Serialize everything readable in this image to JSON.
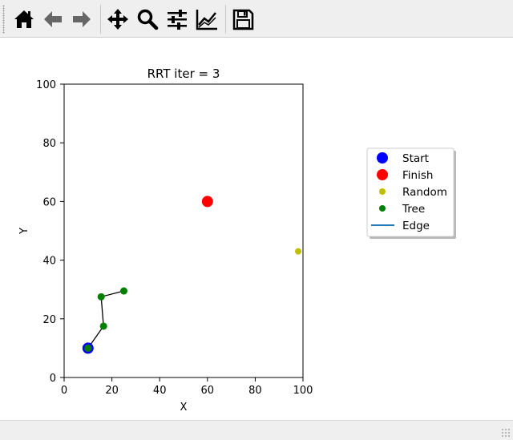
{
  "toolbar": {
    "buttons": [
      {
        "name": "home-button",
        "icon": "home-icon"
      },
      {
        "name": "back-button",
        "icon": "arrow-left-icon"
      },
      {
        "name": "forward-button",
        "icon": "arrow-right-icon"
      },
      {
        "name": "pan-button",
        "icon": "move-icon"
      },
      {
        "name": "zoom-button",
        "icon": "magnifier-icon"
      },
      {
        "name": "configure-subplots-button",
        "icon": "sliders-icon"
      },
      {
        "name": "edit-axis-button",
        "icon": "line-chart-icon"
      },
      {
        "name": "save-button",
        "icon": "floppy-disk-icon"
      }
    ]
  },
  "chart_data": {
    "type": "scatter",
    "title": "RRT iter = 3",
    "xlabel": "X",
    "ylabel": "Y",
    "xlim": [
      0,
      100
    ],
    "ylim": [
      0,
      100
    ],
    "xticks": [
      "0",
      "20",
      "40",
      "60",
      "80",
      "100"
    ],
    "yticks": [
      "0",
      "20",
      "40",
      "60",
      "80",
      "100"
    ],
    "grid": false,
    "legend_position": "right, outside plot",
    "start": {
      "label": "Start",
      "x": 10,
      "y": 10,
      "color": "#0000ff"
    },
    "finish": {
      "label": "Finish",
      "x": 60,
      "y": 60,
      "color": "#ff0000"
    },
    "random": {
      "label": "Random",
      "x": 98,
      "y": 43,
      "color": "#bfbf00"
    },
    "tree": {
      "label": "Tree",
      "color": "#008000",
      "points": [
        [
          10,
          10
        ],
        [
          16.5,
          17.5
        ],
        [
          15.5,
          27.5
        ],
        [
          25,
          29.5
        ]
      ]
    },
    "edges": {
      "label": "Edge",
      "color": "#000000",
      "legend_color": "#1f77b4",
      "segments": [
        [
          [
            10,
            10
          ],
          [
            16.5,
            17.5
          ]
        ],
        [
          [
            16.5,
            17.5
          ],
          [
            15.5,
            27.5
          ]
        ],
        [
          [
            15.5,
            27.5
          ],
          [
            25,
            29.5
          ]
        ]
      ]
    },
    "legend": [
      "Start",
      "Finish",
      "Random",
      "Tree",
      "Edge"
    ]
  }
}
